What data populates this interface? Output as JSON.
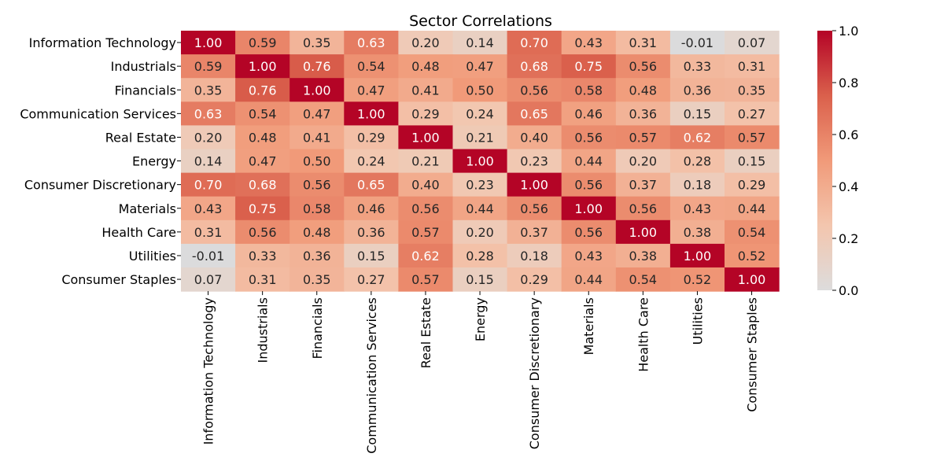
{
  "chart_data": {
    "type": "heatmap",
    "title": "Sector Correlations",
    "xlabel": "",
    "ylabel": "",
    "rows": [
      "Information Technology",
      "Industrials",
      "Financials",
      "Communication Services",
      "Real Estate",
      "Energy",
      "Consumer Discretionary",
      "Materials",
      "Health Care",
      "Utilities",
      "Consumer Staples"
    ],
    "columns": [
      "Information Technology",
      "Industrials",
      "Financials",
      "Communication Services",
      "Real Estate",
      "Energy",
      "Consumer Discretionary",
      "Materials",
      "Health Care",
      "Utilities",
      "Consumer Staples"
    ],
    "values": [
      [
        1.0,
        0.59,
        0.35,
        0.63,
        0.2,
        0.14,
        0.7,
        0.43,
        0.31,
        -0.01,
        0.07
      ],
      [
        0.59,
        1.0,
        0.76,
        0.54,
        0.48,
        0.47,
        0.68,
        0.75,
        0.56,
        0.33,
        0.31
      ],
      [
        0.35,
        0.76,
        1.0,
        0.47,
        0.41,
        0.5,
        0.56,
        0.58,
        0.48,
        0.36,
        0.35
      ],
      [
        0.63,
        0.54,
        0.47,
        1.0,
        0.29,
        0.24,
        0.65,
        0.46,
        0.36,
        0.15,
        0.27
      ],
      [
        0.2,
        0.48,
        0.41,
        0.29,
        1.0,
        0.21,
        0.4,
        0.56,
        0.57,
        0.62,
        0.57
      ],
      [
        0.14,
        0.47,
        0.5,
        0.24,
        0.21,
        1.0,
        0.23,
        0.44,
        0.2,
        0.28,
        0.15
      ],
      [
        0.7,
        0.68,
        0.56,
        0.65,
        0.4,
        0.23,
        1.0,
        0.56,
        0.37,
        0.18,
        0.29
      ],
      [
        0.43,
        0.75,
        0.58,
        0.46,
        0.56,
        0.44,
        0.56,
        1.0,
        0.56,
        0.43,
        0.44
      ],
      [
        0.31,
        0.56,
        0.48,
        0.36,
        0.57,
        0.2,
        0.37,
        0.56,
        1.0,
        0.38,
        0.54
      ],
      [
        -0.01,
        0.33,
        0.36,
        0.15,
        0.62,
        0.28,
        0.18,
        0.43,
        0.38,
        1.0,
        0.52
      ],
      [
        0.07,
        0.31,
        0.35,
        0.27,
        0.57,
        0.15,
        0.29,
        0.44,
        0.54,
        0.52,
        1.0
      ]
    ],
    "colorbar": {
      "range": [
        0.0,
        1.0
      ],
      "ticks": [
        "0.0",
        "0.2",
        "0.4",
        "0.6",
        "0.8",
        "1.0"
      ],
      "colormap": "coolwarm (centered at 0)"
    },
    "value_format": "0.00",
    "grid": false,
    "legend": "colorbar-right"
  }
}
